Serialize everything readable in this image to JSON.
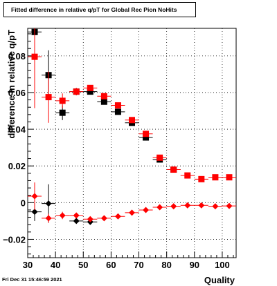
{
  "footer": {
    "timestamp": "Fri Dec 31 15:46:59 2021"
  },
  "chart_data": {
    "type": "scatter",
    "title": "Fitted difference in relative q/pT for Global Rec Pion NoHits",
    "xlabel": "Quality",
    "ylabel": "difference in relative q/pT",
    "xlim": [
      30,
      105
    ],
    "ylim": [
      -0.03,
      0.095
    ],
    "x_ticks": [
      30,
      40,
      50,
      60,
      70,
      80,
      90,
      100
    ],
    "x_tick_labels": [
      "30",
      "40",
      "50",
      "60",
      "70",
      "80",
      "90",
      "100"
    ],
    "y_ticks": [
      -0.02,
      0,
      0.02,
      0.04,
      0.06,
      0.08
    ],
    "y_tick_labels": [
      "−0.02",
      "0",
      "0.02",
      "0.04",
      "0.06",
      "0.08"
    ],
    "grid": true,
    "series": [
      {
        "marker": "square",
        "color": "#000000",
        "x": [
          32.5,
          37.5,
          42.5,
          47.5,
          52.5,
          57.5,
          62.5,
          67.5,
          72.5,
          77.5,
          82.5
        ],
        "y": [
          0.093,
          0.0695,
          0.049,
          0.0605,
          0.0605,
          0.055,
          0.0495,
          0.0435,
          0.0355,
          0.0235,
          0.018
        ],
        "yerr": [
          0.0,
          0.0135,
          0.004,
          0.002,
          0.0015,
          0.001,
          0.001,
          0.001,
          0.001,
          0.001,
          0.001
        ]
      },
      {
        "marker": "square",
        "color": "#ff0000",
        "x": [
          32.5,
          37.5,
          42.5,
          47.5,
          52.5,
          57.5,
          62.5,
          67.5,
          72.5,
          77.5,
          82.5,
          87.5,
          92.5,
          97.5,
          102.5
        ],
        "y": [
          0.0795,
          0.0575,
          0.0555,
          0.0605,
          0.0625,
          0.058,
          0.053,
          0.045,
          0.0375,
          0.0245,
          0.018,
          0.0148,
          0.0128,
          0.0138,
          0.0138
        ],
        "yerr": [
          0.028,
          0.014,
          0.004,
          0.002,
          0.0015,
          0.001,
          0.001,
          0.001,
          0.001,
          0.001,
          0.001,
          0.001,
          0.001,
          0.001,
          0.001
        ]
      },
      {
        "marker": "diamond",
        "color": "#000000",
        "x": [
          32.5,
          37.5,
          47.5,
          52.5
        ],
        "y": [
          -0.005,
          -0.0005,
          -0.01,
          -0.0105
        ],
        "yerr": [
          0.005,
          0.0105,
          0.001,
          0.001
        ]
      },
      {
        "marker": "diamond",
        "color": "#ff0000",
        "x": [
          32.5,
          37.5,
          42.5,
          47.5,
          52.5,
          57.5,
          62.5,
          67.5,
          72.5,
          77.5,
          82.5,
          87.5,
          92.5,
          97.5,
          102.5
        ],
        "y": [
          0.0035,
          -0.0085,
          -0.007,
          -0.007,
          -0.009,
          -0.0085,
          -0.0075,
          -0.0055,
          -0.004,
          -0.0025,
          -0.002,
          -0.0015,
          -0.0015,
          -0.002,
          -0.0018
        ],
        "yerr": [
          0.0075,
          0.0025,
          0.002,
          0.0015,
          0.0012,
          0.001,
          0.001,
          0.001,
          0.001,
          0.001,
          0.001,
          0.001,
          0.001,
          0.001,
          0.001
        ]
      }
    ]
  }
}
